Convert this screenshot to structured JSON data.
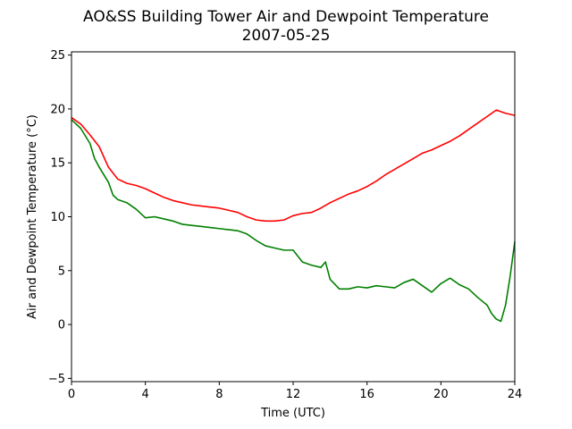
{
  "chart_data": {
    "type": "line",
    "title": "AO&SS Building Tower Air and Dewpoint Temperature",
    "subtitle": "2007-05-25",
    "xlabel": "Time (UTC)",
    "ylabel": "Air and Dewpoint Temperature (°C)",
    "xlim": [
      0,
      24
    ],
    "ylim": [
      -5.3,
      25.3
    ],
    "xticks": [
      0,
      4,
      8,
      12,
      16,
      20,
      24
    ],
    "yticks": [
      -5,
      0,
      5,
      10,
      15,
      20,
      25
    ],
    "grid": false,
    "legend": "none",
    "series": [
      {
        "color": "#ff0000",
        "x": [
          0,
          0.5,
          1,
          1.5,
          2,
          2.5,
          3,
          3.5,
          4,
          4.5,
          5,
          5.5,
          6,
          6.5,
          7,
          7.5,
          8,
          8.5,
          9,
          9.5,
          10,
          10.5,
          11,
          11.5,
          12,
          12.5,
          13,
          13.5,
          14,
          14.5,
          15,
          15.5,
          16,
          16.5,
          17,
          17.5,
          18,
          18.5,
          19,
          19.5,
          20,
          20.5,
          21,
          21.5,
          22,
          22.5,
          23,
          23.5,
          24
        ],
        "y": [
          19.2,
          18.6,
          17.6,
          16.5,
          14.6,
          13.5,
          13.1,
          12.9,
          12.6,
          12.2,
          11.8,
          11.5,
          11.3,
          11.1,
          11.0,
          10.9,
          10.8,
          10.6,
          10.4,
          10.0,
          9.7,
          9.6,
          9.6,
          9.7,
          10.1,
          10.3,
          10.4,
          10.8,
          11.3,
          11.7,
          12.1,
          12.4,
          12.8,
          13.3,
          13.9,
          14.4,
          14.9,
          15.4,
          15.9,
          16.2,
          16.6,
          17.0,
          17.5,
          18.1,
          18.7,
          19.3,
          19.9,
          19.6,
          19.4
        ]
      },
      {
        "color": "#008000",
        "x": [
          0,
          0.5,
          1,
          1.25,
          1.5,
          2,
          2.25,
          2.5,
          3,
          3.5,
          4,
          4.5,
          5,
          5.5,
          6,
          6.5,
          7,
          7.5,
          8,
          8.5,
          9,
          9.5,
          10,
          10.5,
          11,
          11.5,
          12,
          12.5,
          13,
          13.5,
          13.75,
          14,
          14.5,
          15,
          15.5,
          16,
          16.5,
          17,
          17.5,
          18,
          18.5,
          19,
          19.5,
          20,
          20.5,
          21,
          21.5,
          22,
          22.5,
          22.75,
          23,
          23.25,
          23.5,
          23.75,
          24
        ],
        "y": [
          19.0,
          18.2,
          16.8,
          15.4,
          14.6,
          13.2,
          12.0,
          11.6,
          11.3,
          10.7,
          9.9,
          10.0,
          9.8,
          9.6,
          9.3,
          9.2,
          9.1,
          9.0,
          8.9,
          8.8,
          8.7,
          8.4,
          7.8,
          7.3,
          7.1,
          6.9,
          6.9,
          5.8,
          5.5,
          5.3,
          5.8,
          4.2,
          3.3,
          3.3,
          3.5,
          3.4,
          3.6,
          3.5,
          3.4,
          3.9,
          4.2,
          3.6,
          3.0,
          3.8,
          4.3,
          3.7,
          3.3,
          2.5,
          1.8,
          1.0,
          0.5,
          0.3,
          1.8,
          4.5,
          7.7
        ]
      }
    ]
  }
}
